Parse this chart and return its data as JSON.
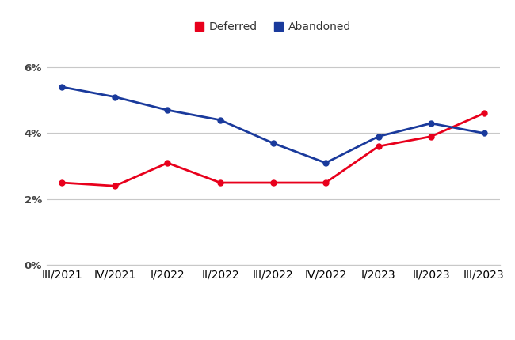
{
  "x_labels": [
    "III/2021",
    "IV/2021",
    "I/2022",
    "II/2022",
    "III/2022",
    "IV/2022",
    "I/2023",
    "II/2023",
    "III/2023"
  ],
  "deferred": [
    0.025,
    0.024,
    0.031,
    0.025,
    0.025,
    0.025,
    0.036,
    0.039,
    0.046
  ],
  "abandoned": [
    0.054,
    0.051,
    0.047,
    0.044,
    0.037,
    0.031,
    0.039,
    0.043,
    0.04
  ],
  "deferred_color": "#e8001c",
  "abandoned_color": "#1a3a9c",
  "background_color": "#ffffff",
  "ylim": [
    0,
    0.068
  ],
  "yticks": [
    0.0,
    0.02,
    0.04,
    0.06
  ],
  "ytick_labels": [
    "0%",
    "2%",
    "4%",
    "6%"
  ],
  "legend_labels": [
    "Deferred",
    "Abandoned"
  ],
  "marker_size": 5,
  "line_width": 2.0,
  "grid_color": "#c8c8c8",
  "tick_fontsize": 9.5,
  "legend_fontsize": 10
}
